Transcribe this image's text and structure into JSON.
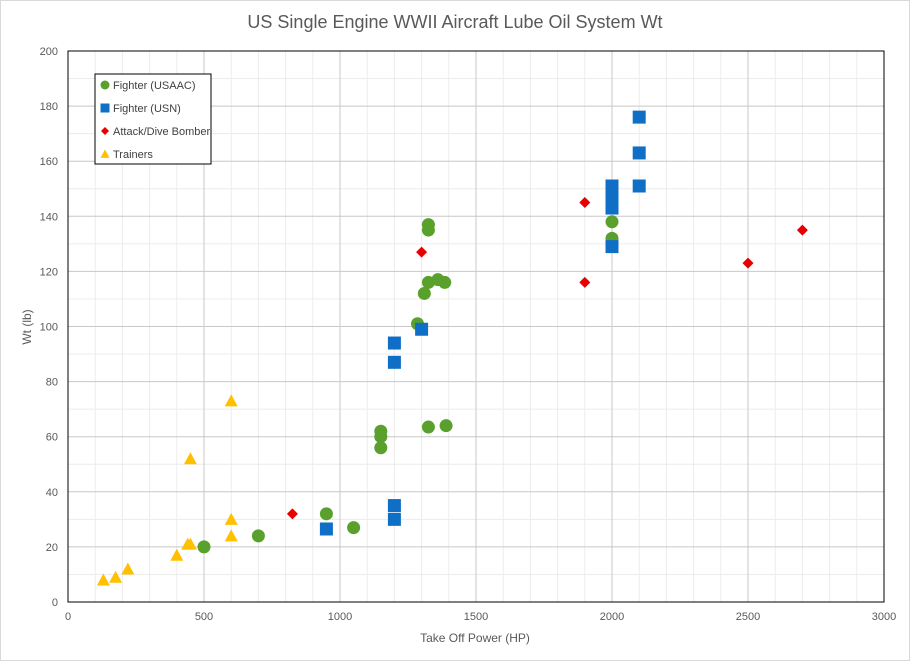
{
  "chart_data": {
    "type": "scatter",
    "title": "US Single Engine WWII Aircraft Lube Oil System  Wt",
    "xlabel": "Take Off Power (HP)",
    "ylabel": "Wt (lb)",
    "xlim": [
      0,
      3000
    ],
    "ylim": [
      0,
      200
    ],
    "x_major_ticks": [
      0,
      500,
      1000,
      1500,
      2000,
      2500,
      3000
    ],
    "y_major_ticks": [
      0,
      20,
      40,
      60,
      80,
      100,
      120,
      140,
      160,
      180,
      200
    ],
    "x_minor_step": 100,
    "y_minor_step": 10,
    "grid": true,
    "legend_position": "top-left",
    "series": [
      {
        "name": "Fighter (USAAC)",
        "marker": "circle",
        "color": "#5aa02c",
        "points": [
          [
            500,
            20
          ],
          [
            700,
            24
          ],
          [
            950,
            32
          ],
          [
            1050,
            27
          ],
          [
            1150,
            56
          ],
          [
            1150,
            60
          ],
          [
            1150,
            62
          ],
          [
            1285,
            101
          ],
          [
            1310,
            112
          ],
          [
            1325,
            116
          ],
          [
            1360,
            117
          ],
          [
            1385,
            116
          ],
          [
            1325,
            135
          ],
          [
            1325,
            137
          ],
          [
            1325,
            63.5
          ],
          [
            1390,
            64
          ],
          [
            2000,
            132
          ],
          [
            2000,
            138
          ]
        ]
      },
      {
        "name": "Fighter (USN)",
        "marker": "square",
        "color": "#0f6fc6",
        "points": [
          [
            950,
            26.5
          ],
          [
            1200,
            30
          ],
          [
            1200,
            35
          ],
          [
            1200,
            87
          ],
          [
            1200,
            94
          ],
          [
            1300,
            99
          ],
          [
            2000,
            129
          ],
          [
            2000,
            143
          ],
          [
            2000,
            146
          ],
          [
            2000,
            150
          ],
          [
            2000,
            151
          ],
          [
            2100,
            151
          ],
          [
            2100,
            163
          ],
          [
            2100,
            176
          ]
        ]
      },
      {
        "name": "Attack/Dive Bomber",
        "marker": "diamond",
        "color": "#e60000",
        "points": [
          [
            825,
            32
          ],
          [
            1300,
            127
          ],
          [
            1900,
            116
          ],
          [
            1900,
            145
          ],
          [
            2500,
            123
          ],
          [
            2700,
            135
          ]
        ]
      },
      {
        "name": "Trainers",
        "marker": "triangle",
        "color": "#ffc000",
        "points": [
          [
            130,
            8
          ],
          [
            175,
            9
          ],
          [
            220,
            12
          ],
          [
            400,
            17
          ],
          [
            440,
            21
          ],
          [
            450,
            21
          ],
          [
            450,
            52
          ],
          [
            600,
            24
          ],
          [
            600,
            30
          ],
          [
            600,
            73
          ]
        ]
      }
    ]
  }
}
